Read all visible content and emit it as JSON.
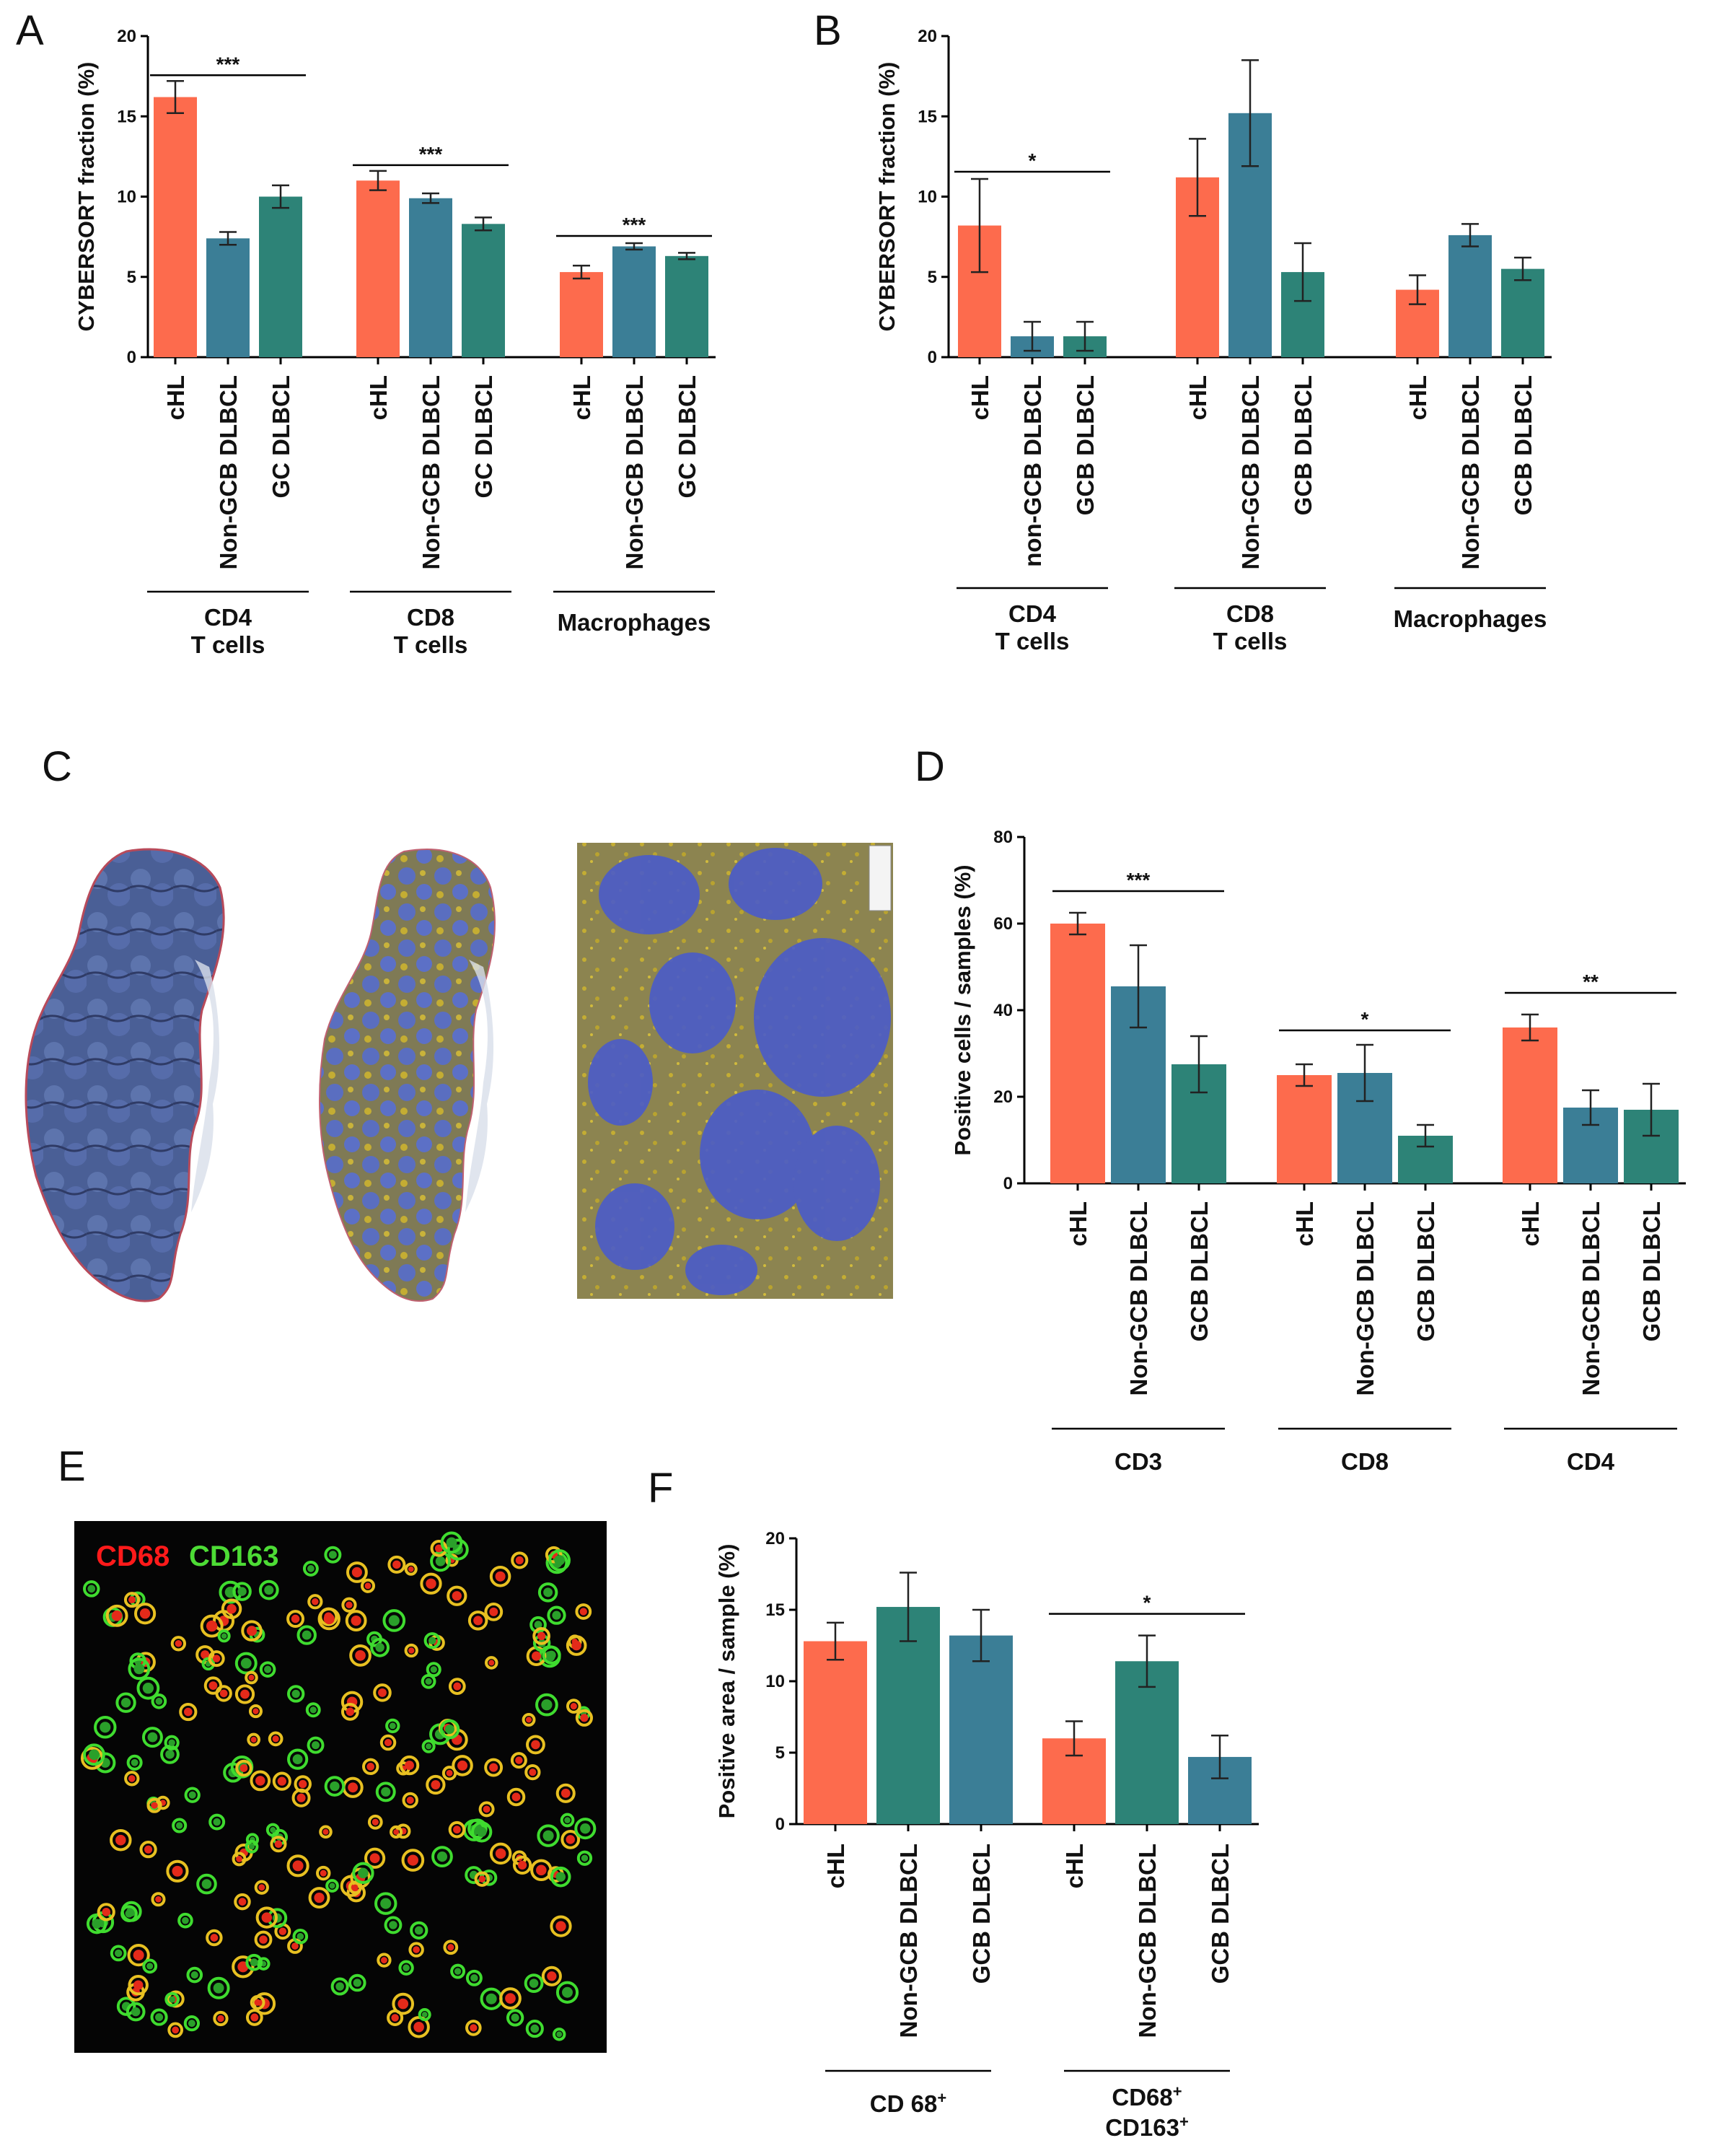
{
  "panels": {
    "A": "A",
    "B": "B",
    "C": "C",
    "D": "D",
    "E": "E",
    "F": "F"
  },
  "colors": {
    "cHL": "#fd6b4d",
    "nongcb": "#3b7e96",
    "gcb": "#2d8377"
  },
  "fluorescence": {
    "label_cd68": "CD68",
    "label_cd163": "CD163",
    "cd68_color": "#ff1a1a",
    "cd163_color": "#4ddc35"
  },
  "histology": {
    "description_icon": "tissue-section-image"
  },
  "chart_data": [
    {
      "panel": "A",
      "type": "bar",
      "ylabel": "CYBERSORT fraction (%)",
      "ylim": [
        0,
        20
      ],
      "yticks": [
        "0",
        "5",
        "10",
        "15",
        "20"
      ],
      "groups": [
        {
          "label_lines": [
            "CD4",
            "T cells"
          ],
          "categories": [
            "cHL",
            "Non-GCB DLBCL",
            "GC DLBCL"
          ],
          "values": [
            16.2,
            7.4,
            10.0
          ],
          "errors": [
            1.0,
            0.4,
            0.7
          ],
          "significance": "***"
        },
        {
          "label_lines": [
            "CD8",
            "T cells"
          ],
          "categories": [
            "cHL",
            "Non-GCB DLBCL",
            "GC DLBCL"
          ],
          "values": [
            11.0,
            9.9,
            8.3
          ],
          "errors": [
            0.6,
            0.3,
            0.4
          ],
          "significance": "***"
        },
        {
          "label_lines": [
            "Macrophages"
          ],
          "categories": [
            "cHL",
            "Non-GCB DLBCL",
            "GC DLBCL"
          ],
          "values": [
            5.3,
            6.9,
            6.3
          ],
          "errors": [
            0.4,
            0.2,
            0.2
          ],
          "significance": "***"
        }
      ]
    },
    {
      "panel": "B",
      "type": "bar",
      "ylabel": "CYBERSORT fraction (%)",
      "ylim": [
        0,
        20
      ],
      "yticks": [
        "0",
        "5",
        "10",
        "15",
        "20"
      ],
      "groups": [
        {
          "label_lines": [
            "CD4",
            "T cells"
          ],
          "categories": [
            "cHL",
            "non-GCB DLBCL",
            "GCB DLBCL"
          ],
          "values": [
            8.2,
            1.3,
            1.3
          ],
          "errors": [
            2.9,
            0.9,
            0.9
          ],
          "significance": "*"
        },
        {
          "label_lines": [
            "CD8",
            "T cells"
          ],
          "categories": [
            "cHL",
            "Non-GCB DLBCL",
            "GCB DLBCL"
          ],
          "values": [
            11.2,
            15.2,
            5.3
          ],
          "errors": [
            2.4,
            3.3,
            1.8
          ],
          "significance": ""
        },
        {
          "label_lines": [
            "Macrophages"
          ],
          "categories": [
            "cHL",
            "Non-GCB DLBCL",
            "GCB DLBCL"
          ],
          "values": [
            4.2,
            7.6,
            5.5
          ],
          "errors": [
            0.9,
            0.7,
            0.7
          ],
          "significance": ""
        }
      ]
    },
    {
      "panel": "D",
      "type": "bar",
      "ylabel": "Positive cells / samples (%)",
      "ylim": [
        0,
        80
      ],
      "yticks": [
        "0",
        "20",
        "40",
        "60",
        "80"
      ],
      "groups": [
        {
          "label_lines": [
            "CD3"
          ],
          "categories": [
            "cHL",
            "Non-GCB DLBCL",
            "GCB DLBCL"
          ],
          "values": [
            60,
            45.5,
            27.5
          ],
          "errors": [
            2.5,
            9.5,
            6.5
          ],
          "significance": "***"
        },
        {
          "label_lines": [
            "CD8"
          ],
          "categories": [
            "cHL",
            "Non-GCB DLBCL",
            "GCB DLBCL"
          ],
          "values": [
            25,
            25.5,
            11
          ],
          "errors": [
            2.5,
            6.5,
            2.5
          ],
          "significance": "*"
        },
        {
          "label_lines": [
            "CD4"
          ],
          "categories": [
            "cHL",
            "Non-GCB DLBCL",
            "GCB DLBCL"
          ],
          "values": [
            36,
            17.5,
            17
          ],
          "errors": [
            3,
            4,
            6
          ],
          "significance": "**"
        }
      ]
    },
    {
      "panel": "F",
      "type": "bar",
      "ylabel": "Positive area / sample (%)",
      "ylim": [
        0,
        20
      ],
      "yticks": [
        "0",
        "5",
        "10",
        "15",
        "20"
      ],
      "groups": [
        {
          "label_lines": [
            "CD 68+"
          ],
          "categories": [
            "cHL",
            "Non-GCB DLBCL",
            "GCB DLBCL"
          ],
          "values": [
            12.8,
            15.2,
            13.2
          ],
          "errors": [
            1.3,
            2.4,
            1.8
          ],
          "significance": ""
        },
        {
          "label_lines": [
            "CD68+",
            "CD163+"
          ],
          "categories": [
            "cHL",
            "Non-GCB DLBCL",
            "GCB DLBCL"
          ],
          "values": [
            6.0,
            11.4,
            4.7
          ],
          "errors": [
            1.2,
            1.8,
            1.5
          ],
          "significance": "*"
        }
      ]
    }
  ]
}
